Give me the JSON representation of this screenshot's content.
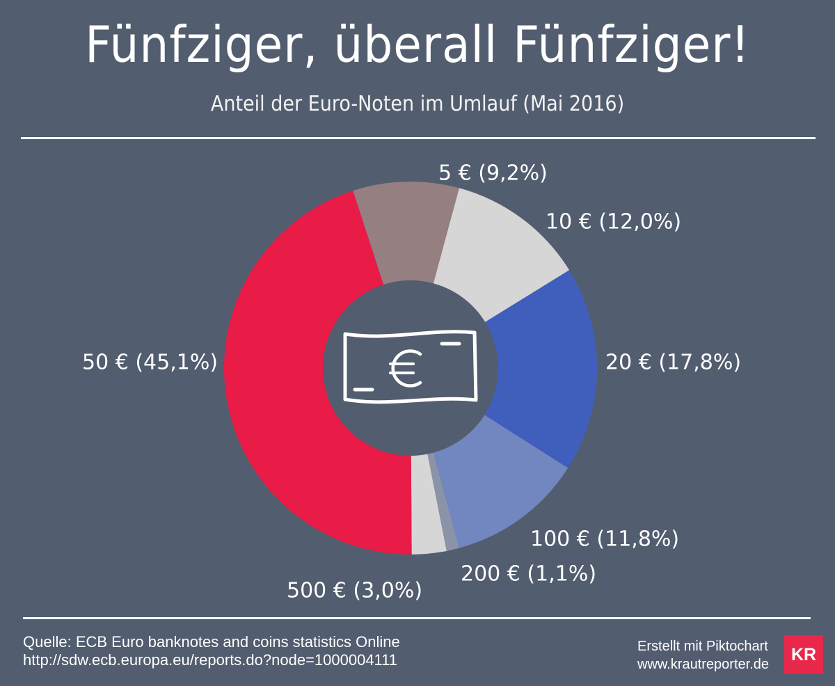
{
  "header": {
    "title": "Fünfziger, überall Fünfziger!",
    "subtitle": "Anteil der Euro-Noten im Umlauf (Mai 2016)"
  },
  "chart_data": {
    "type": "pie",
    "donut": true,
    "center_icon": "euro-banknote-icon",
    "slices": [
      {
        "label": "5 € (9,2%)",
        "category": "5 €",
        "value": 9.2,
        "color": "#957f81"
      },
      {
        "label": "10 € (12,0%)",
        "category": "10 €",
        "value": 12.0,
        "color": "#d6d6d6"
      },
      {
        "label": "20 € (17,8%)",
        "category": "20 €",
        "value": 17.8,
        "color": "#405fbd"
      },
      {
        "label": "100 € (11,8%)",
        "category": "100 €",
        "value": 11.8,
        "color": "#7286c0"
      },
      {
        "label": "200 € (1,1%)",
        "category": "200 €",
        "value": 1.1,
        "color": "#8a93a8"
      },
      {
        "label": "500 € (3,0%)",
        "category": "500 €",
        "value": 3.0,
        "color": "#d6d6d6"
      },
      {
        "label": "50 € (45,1%)",
        "category": "50 €",
        "value": 45.1,
        "color": "#e91b47"
      }
    ]
  },
  "footer": {
    "source_line1": "Quelle: ECB Euro banknotes and coins statistics Online",
    "source_line2": "http://sdw.ecb.europa.eu/reports.do?node=1000004111",
    "credit_line1": "Erstellt mit Piktochart",
    "credit_line2": "www.krautreporter.de",
    "logo_text": "KR"
  }
}
